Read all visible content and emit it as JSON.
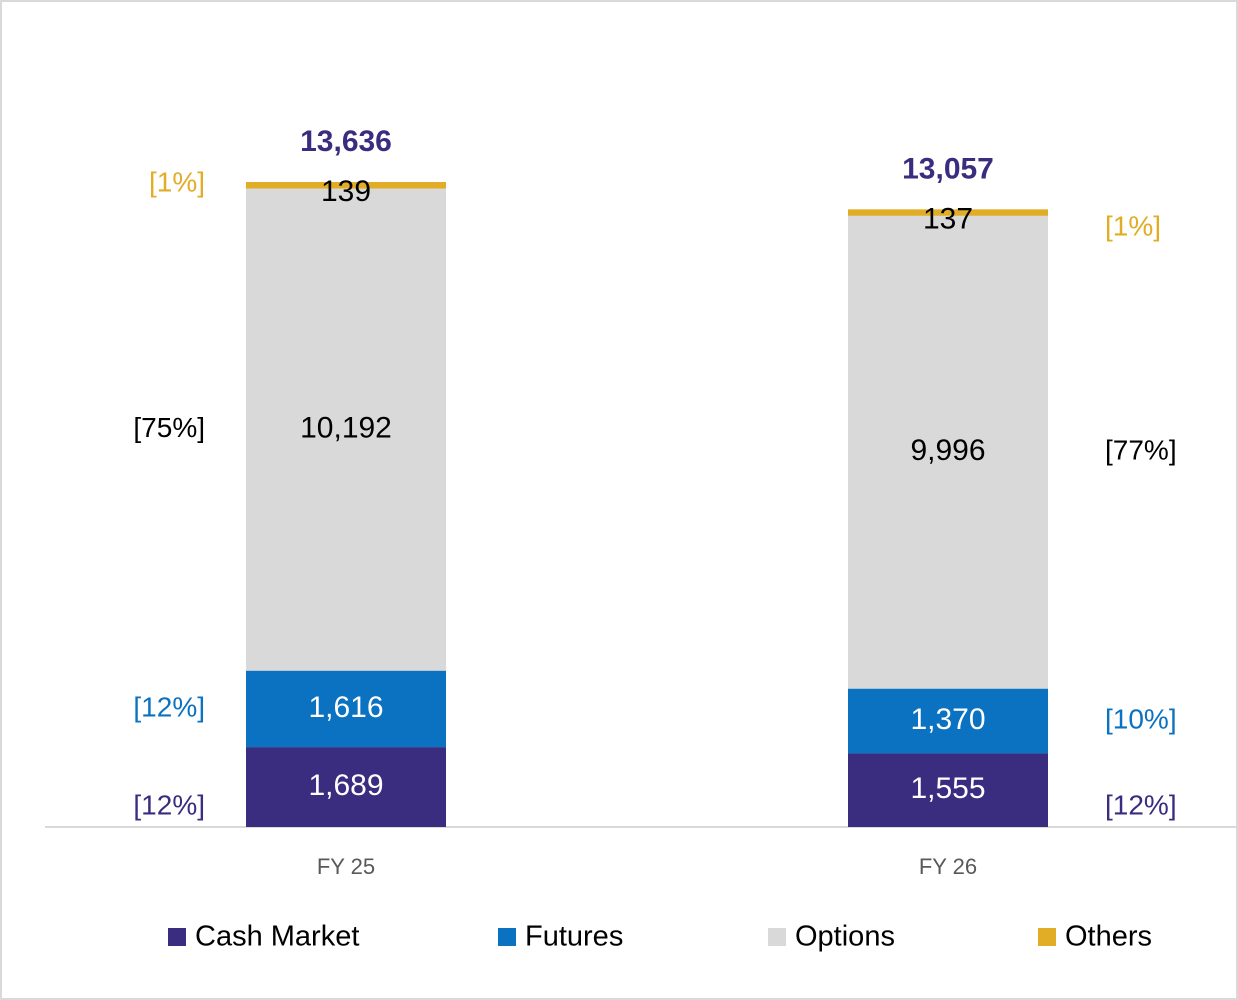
{
  "chart_data": {
    "type": "stacked-bar",
    "categories": [
      "FY 25",
      "FY 26"
    ],
    "series": [
      {
        "name": "Cash Market",
        "color": "#3a2d80",
        "values": [
          1689,
          1555
        ],
        "value_labels": [
          "1,689",
          "1,555"
        ],
        "share_labels": [
          "[12%]",
          "[12%]"
        ]
      },
      {
        "name": "Futures",
        "color": "#0b72c1",
        "values": [
          1616,
          1370
        ],
        "value_labels": [
          "1,616",
          "1,370"
        ],
        "share_labels": [
          "[12%]",
          "[10%]"
        ]
      },
      {
        "name": "Options",
        "color": "#d9d9d9",
        "values": [
          10192,
          9996
        ],
        "value_labels": [
          "10,192",
          "9,996"
        ],
        "share_labels": [
          "[75%]",
          "[77%]"
        ]
      },
      {
        "name": "Others",
        "color": "#e1ad27",
        "values": [
          139,
          137
        ],
        "value_labels": [
          "139",
          "137"
        ],
        "share_labels": [
          "[1%]",
          "[1%]"
        ]
      }
    ],
    "totals": [
      13636,
      13057
    ],
    "total_labels": [
      "13,636",
      "13,057"
    ],
    "total_color": "#3a2d80"
  }
}
